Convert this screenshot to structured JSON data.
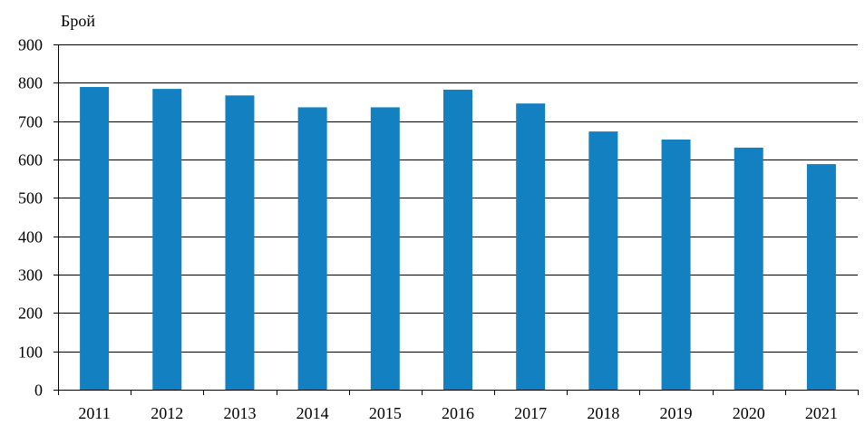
{
  "chart_data": {
    "type": "bar",
    "unit_label": "Брой",
    "categories": [
      "2011",
      "2012",
      "2013",
      "2014",
      "2015",
      "2016",
      "2017",
      "2018",
      "2019",
      "2020",
      "2021"
    ],
    "values": [
      789,
      784,
      767,
      736,
      736,
      782,
      746,
      673,
      652,
      631,
      588
    ],
    "y_ticks": [
      "0",
      "100",
      "200",
      "300",
      "400",
      "500",
      "600",
      "700",
      "800",
      "900"
    ],
    "ylim": [
      0,
      900
    ],
    "grid": true,
    "bar_color": "#1380c2",
    "legend": "none"
  }
}
